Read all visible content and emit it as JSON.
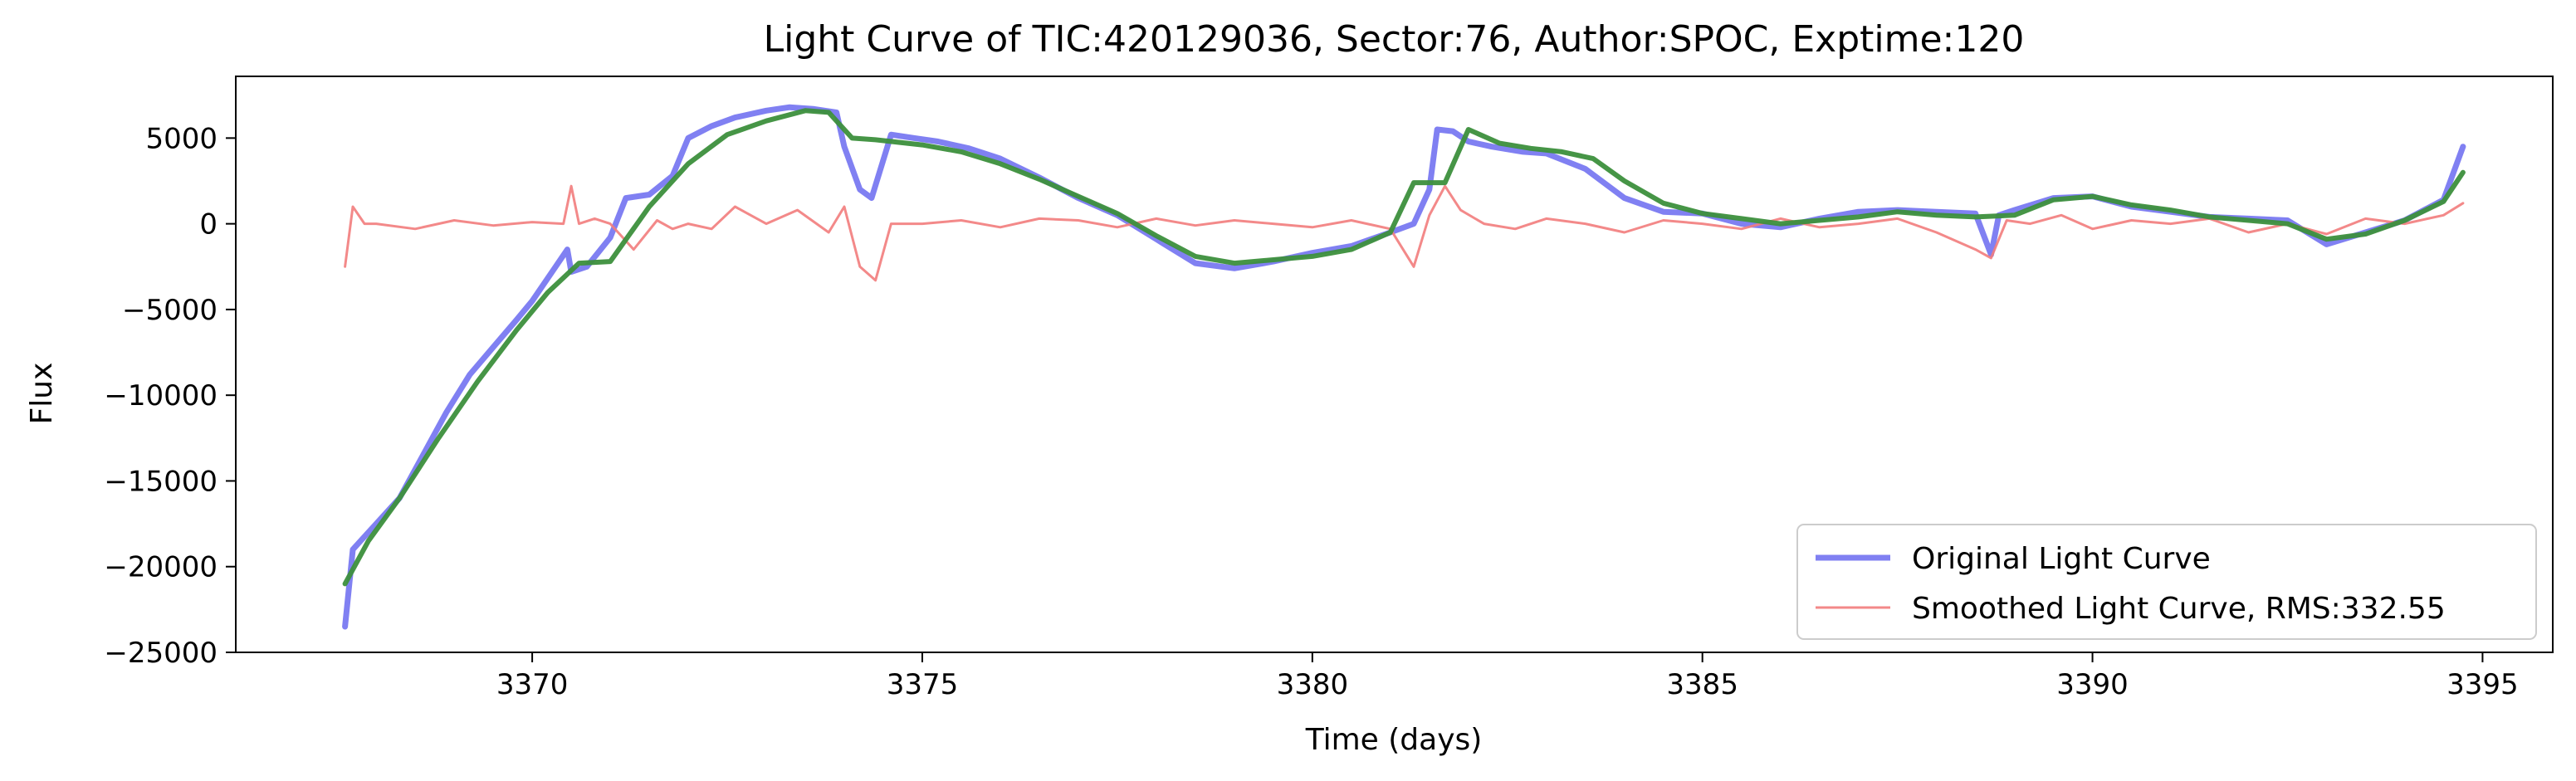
{
  "chart_data": {
    "type": "line",
    "title": "Light Curve of TIC:420129036, Sector:76, Author:SPOC, Exptime:120",
    "xlabel": "Time (days)",
    "ylabel": "Flux",
    "xlim": [
      3366.2,
      3395.9
    ],
    "ylim": [
      -25000,
      8600
    ],
    "xticks": [
      3370,
      3375,
      3380,
      3385,
      3390,
      3395
    ],
    "yticks": [
      -25000,
      -20000,
      -15000,
      -10000,
      -5000,
      0,
      5000
    ],
    "grid": false,
    "legend_position": "lower-right",
    "colors": {
      "original": "#6a6af0",
      "smoothed": "#f27c7c",
      "trend": "#3c8f3c"
    },
    "series": [
      {
        "name": "Original Light Curve",
        "role": "original",
        "x": [
          3367.6,
          3367.7,
          3367.8,
          3368.0,
          3368.3,
          3368.6,
          3368.9,
          3369.2,
          3369.5,
          3369.8,
          3370.0,
          3370.3,
          3370.45,
          3370.5,
          3370.7,
          3371.0,
          3371.2,
          3371.5,
          3371.8,
          3372.0,
          3372.3,
          3372.6,
          3373.0,
          3373.3,
          3373.6,
          3373.9,
          3374.0,
          3374.2,
          3374.35,
          3374.6,
          3374.9,
          3375.2,
          3375.6,
          3376.0,
          3376.5,
          3377.0,
          3377.5,
          3378.0,
          3378.5,
          3379.0,
          3379.5,
          3380.0,
          3380.5,
          3381.0,
          3381.3,
          3381.5,
          3381.6,
          3381.8,
          3382.0,
          3382.3,
          3382.7,
          3383.0,
          3383.5,
          3384.0,
          3384.5,
          3385.0,
          3385.5,
          3386.0,
          3386.5,
          3387.0,
          3387.5,
          3388.0,
          3388.5,
          3388.7,
          3388.8,
          3389.0,
          3389.5,
          3390.0,
          3390.5,
          3391.0,
          3391.5,
          3392.0,
          3392.5,
          3393.0,
          3393.5,
          3394.0,
          3394.5,
          3394.75
        ],
        "y": [
          -23500,
          -19000,
          -18500,
          -17500,
          -16000,
          -13500,
          -11000,
          -8800,
          -7200,
          -5600,
          -4500,
          -2500,
          -1500,
          -2800,
          -2500,
          -800,
          1500,
          1700,
          2800,
          5000,
          5700,
          6200,
          6600,
          6800,
          6700,
          6500,
          4500,
          2000,
          1500,
          5200,
          5000,
          4800,
          4400,
          3800,
          2700,
          1500,
          500,
          -900,
          -2300,
          -2600,
          -2200,
          -1700,
          -1300,
          -500,
          0,
          2000,
          5500,
          5400,
          4800,
          4500,
          4200,
          4100,
          3200,
          1500,
          700,
          600,
          0,
          -200,
          300,
          700,
          800,
          700,
          600,
          -1800,
          500,
          800,
          1500,
          1600,
          1000,
          700,
          400,
          300,
          200,
          -1200,
          -500,
          200,
          1400,
          4500
        ]
      },
      {
        "name": "Smoothed Light Curve, RMS:332.55",
        "role": "smoothed",
        "x": [
          3367.6,
          3367.7,
          3367.85,
          3368.0,
          3368.5,
          3369.0,
          3369.5,
          3370.0,
          3370.4,
          3370.5,
          3370.6,
          3370.8,
          3371.0,
          3371.3,
          3371.6,
          3371.8,
          3372.0,
          3372.3,
          3372.6,
          3373.0,
          3373.4,
          3373.8,
          3374.0,
          3374.2,
          3374.4,
          3374.6,
          3375.0,
          3375.5,
          3376.0,
          3376.5,
          3377.0,
          3377.5,
          3378.0,
          3378.5,
          3379.0,
          3379.5,
          3380.0,
          3380.5,
          3381.0,
          3381.3,
          3381.5,
          3381.7,
          3381.9,
          3382.2,
          3382.6,
          3383.0,
          3383.5,
          3384.0,
          3384.5,
          3385.0,
          3385.5,
          3386.0,
          3386.5,
          3387.0,
          3387.5,
          3388.0,
          3388.5,
          3388.7,
          3388.9,
          3389.2,
          3389.6,
          3390.0,
          3390.5,
          3391.0,
          3391.5,
          3392.0,
          3392.5,
          3393.0,
          3393.5,
          3394.0,
          3394.5,
          3394.75
        ],
        "y": [
          -2500,
          1000,
          0,
          0,
          -300,
          200,
          -100,
          100,
          0,
          2200,
          0,
          300,
          0,
          -1500,
          200,
          -300,
          0,
          -300,
          1000,
          0,
          800,
          -500,
          1000,
          -2500,
          -3300,
          0,
          0,
          200,
          -200,
          300,
          200,
          -200,
          300,
          -100,
          200,
          0,
          -200,
          200,
          -300,
          -2500,
          500,
          2200,
          800,
          0,
          -300,
          300,
          0,
          -500,
          200,
          0,
          -300,
          300,
          -200,
          0,
          300,
          -500,
          -1500,
          -2000,
          200,
          0,
          500,
          -300,
          200,
          0,
          300,
          -500,
          0,
          -600,
          300,
          0,
          500,
          1200
        ]
      },
      {
        "name": "",
        "role": "trend",
        "x": [
          3367.6,
          3367.9,
          3368.3,
          3368.8,
          3369.3,
          3369.8,
          3370.2,
          3370.6,
          3371.0,
          3371.5,
          3372.0,
          3372.5,
          3373.0,
          3373.5,
          3373.8,
          3374.1,
          3374.4,
          3375.0,
          3375.5,
          3376.0,
          3376.5,
          3377.0,
          3377.5,
          3378.0,
          3378.5,
          3379.0,
          3379.5,
          3380.0,
          3380.5,
          3381.0,
          3381.3,
          3381.7,
          3382.0,
          3382.4,
          3382.8,
          3383.2,
          3383.6,
          3384.0,
          3384.5,
          3385.0,
          3385.5,
          3386.0,
          3386.5,
          3387.0,
          3387.5,
          3388.0,
          3388.5,
          3389.0,
          3389.5,
          3390.0,
          3390.5,
          3391.0,
          3391.5,
          3392.0,
          3392.5,
          3393.0,
          3393.5,
          3394.0,
          3394.5,
          3394.75
        ],
        "y": [
          -21000,
          -18500,
          -16000,
          -12500,
          -9200,
          -6200,
          -4000,
          -2300,
          -2200,
          1000,
          3500,
          5200,
          6000,
          6600,
          6500,
          5000,
          4900,
          4600,
          4200,
          3500,
          2600,
          1600,
          600,
          -700,
          -1900,
          -2300,
          -2100,
          -1900,
          -1500,
          -500,
          2400,
          2400,
          5500,
          4700,
          4400,
          4200,
          3800,
          2500,
          1200,
          600,
          300,
          0,
          200,
          400,
          700,
          500,
          400,
          500,
          1400,
          1600,
          1100,
          800,
          400,
          200,
          0,
          -900,
          -600,
          200,
          1300,
          3000
        ]
      }
    ]
  }
}
